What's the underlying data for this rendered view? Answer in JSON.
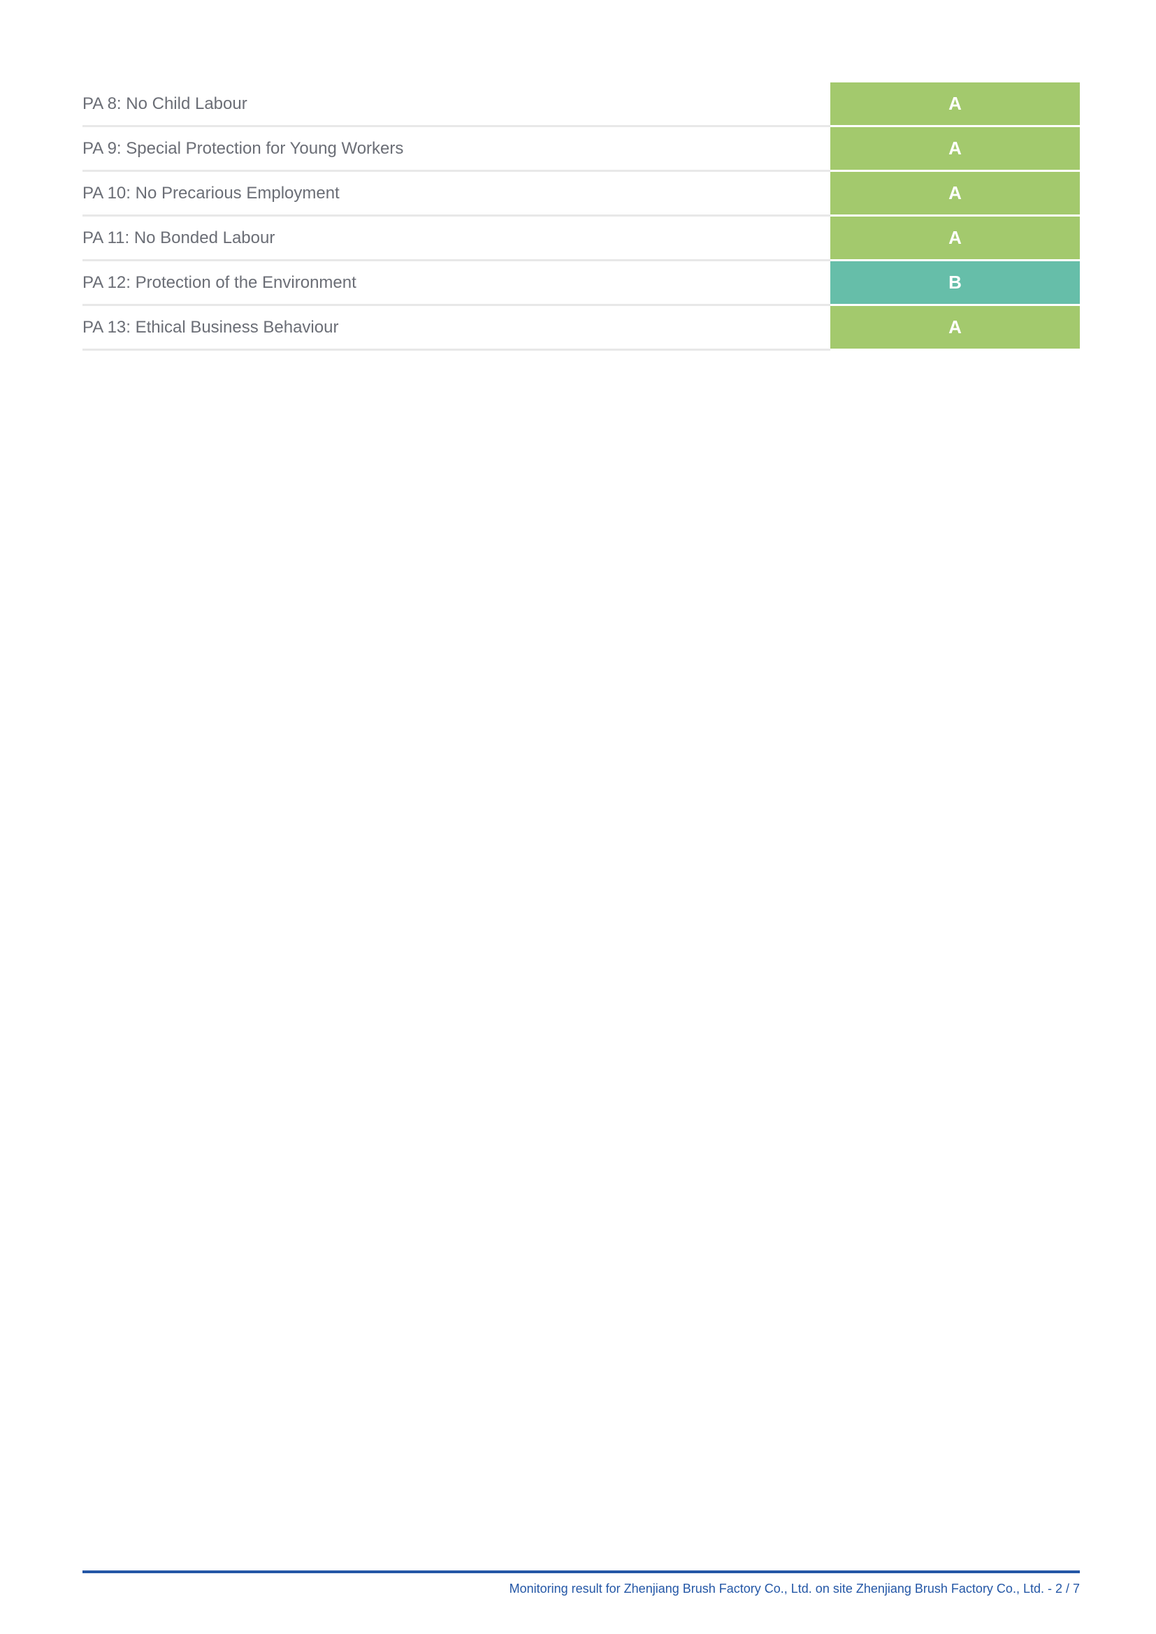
{
  "colors": {
    "grade_A": "#a3c96d",
    "grade_B": "#66bea9",
    "footer": "#2457a6"
  },
  "rows": [
    {
      "label": "PA 8: No Child Labour",
      "grade": "A"
    },
    {
      "label": "PA 9: Special Protection for Young Workers",
      "grade": "A"
    },
    {
      "label": "PA 10: No Precarious Employment",
      "grade": "A"
    },
    {
      "label": "PA 11: No Bonded Labour",
      "grade": "A"
    },
    {
      "label": "PA 12: Protection of the Environment",
      "grade": "B"
    },
    {
      "label": "PA 13: Ethical Business Behaviour",
      "grade": "A"
    }
  ],
  "footer": {
    "text": "Monitoring result for Zhenjiang Brush Factory Co., Ltd. on site Zhenjiang Brush Factory Co., Ltd. - 2 / 7"
  }
}
